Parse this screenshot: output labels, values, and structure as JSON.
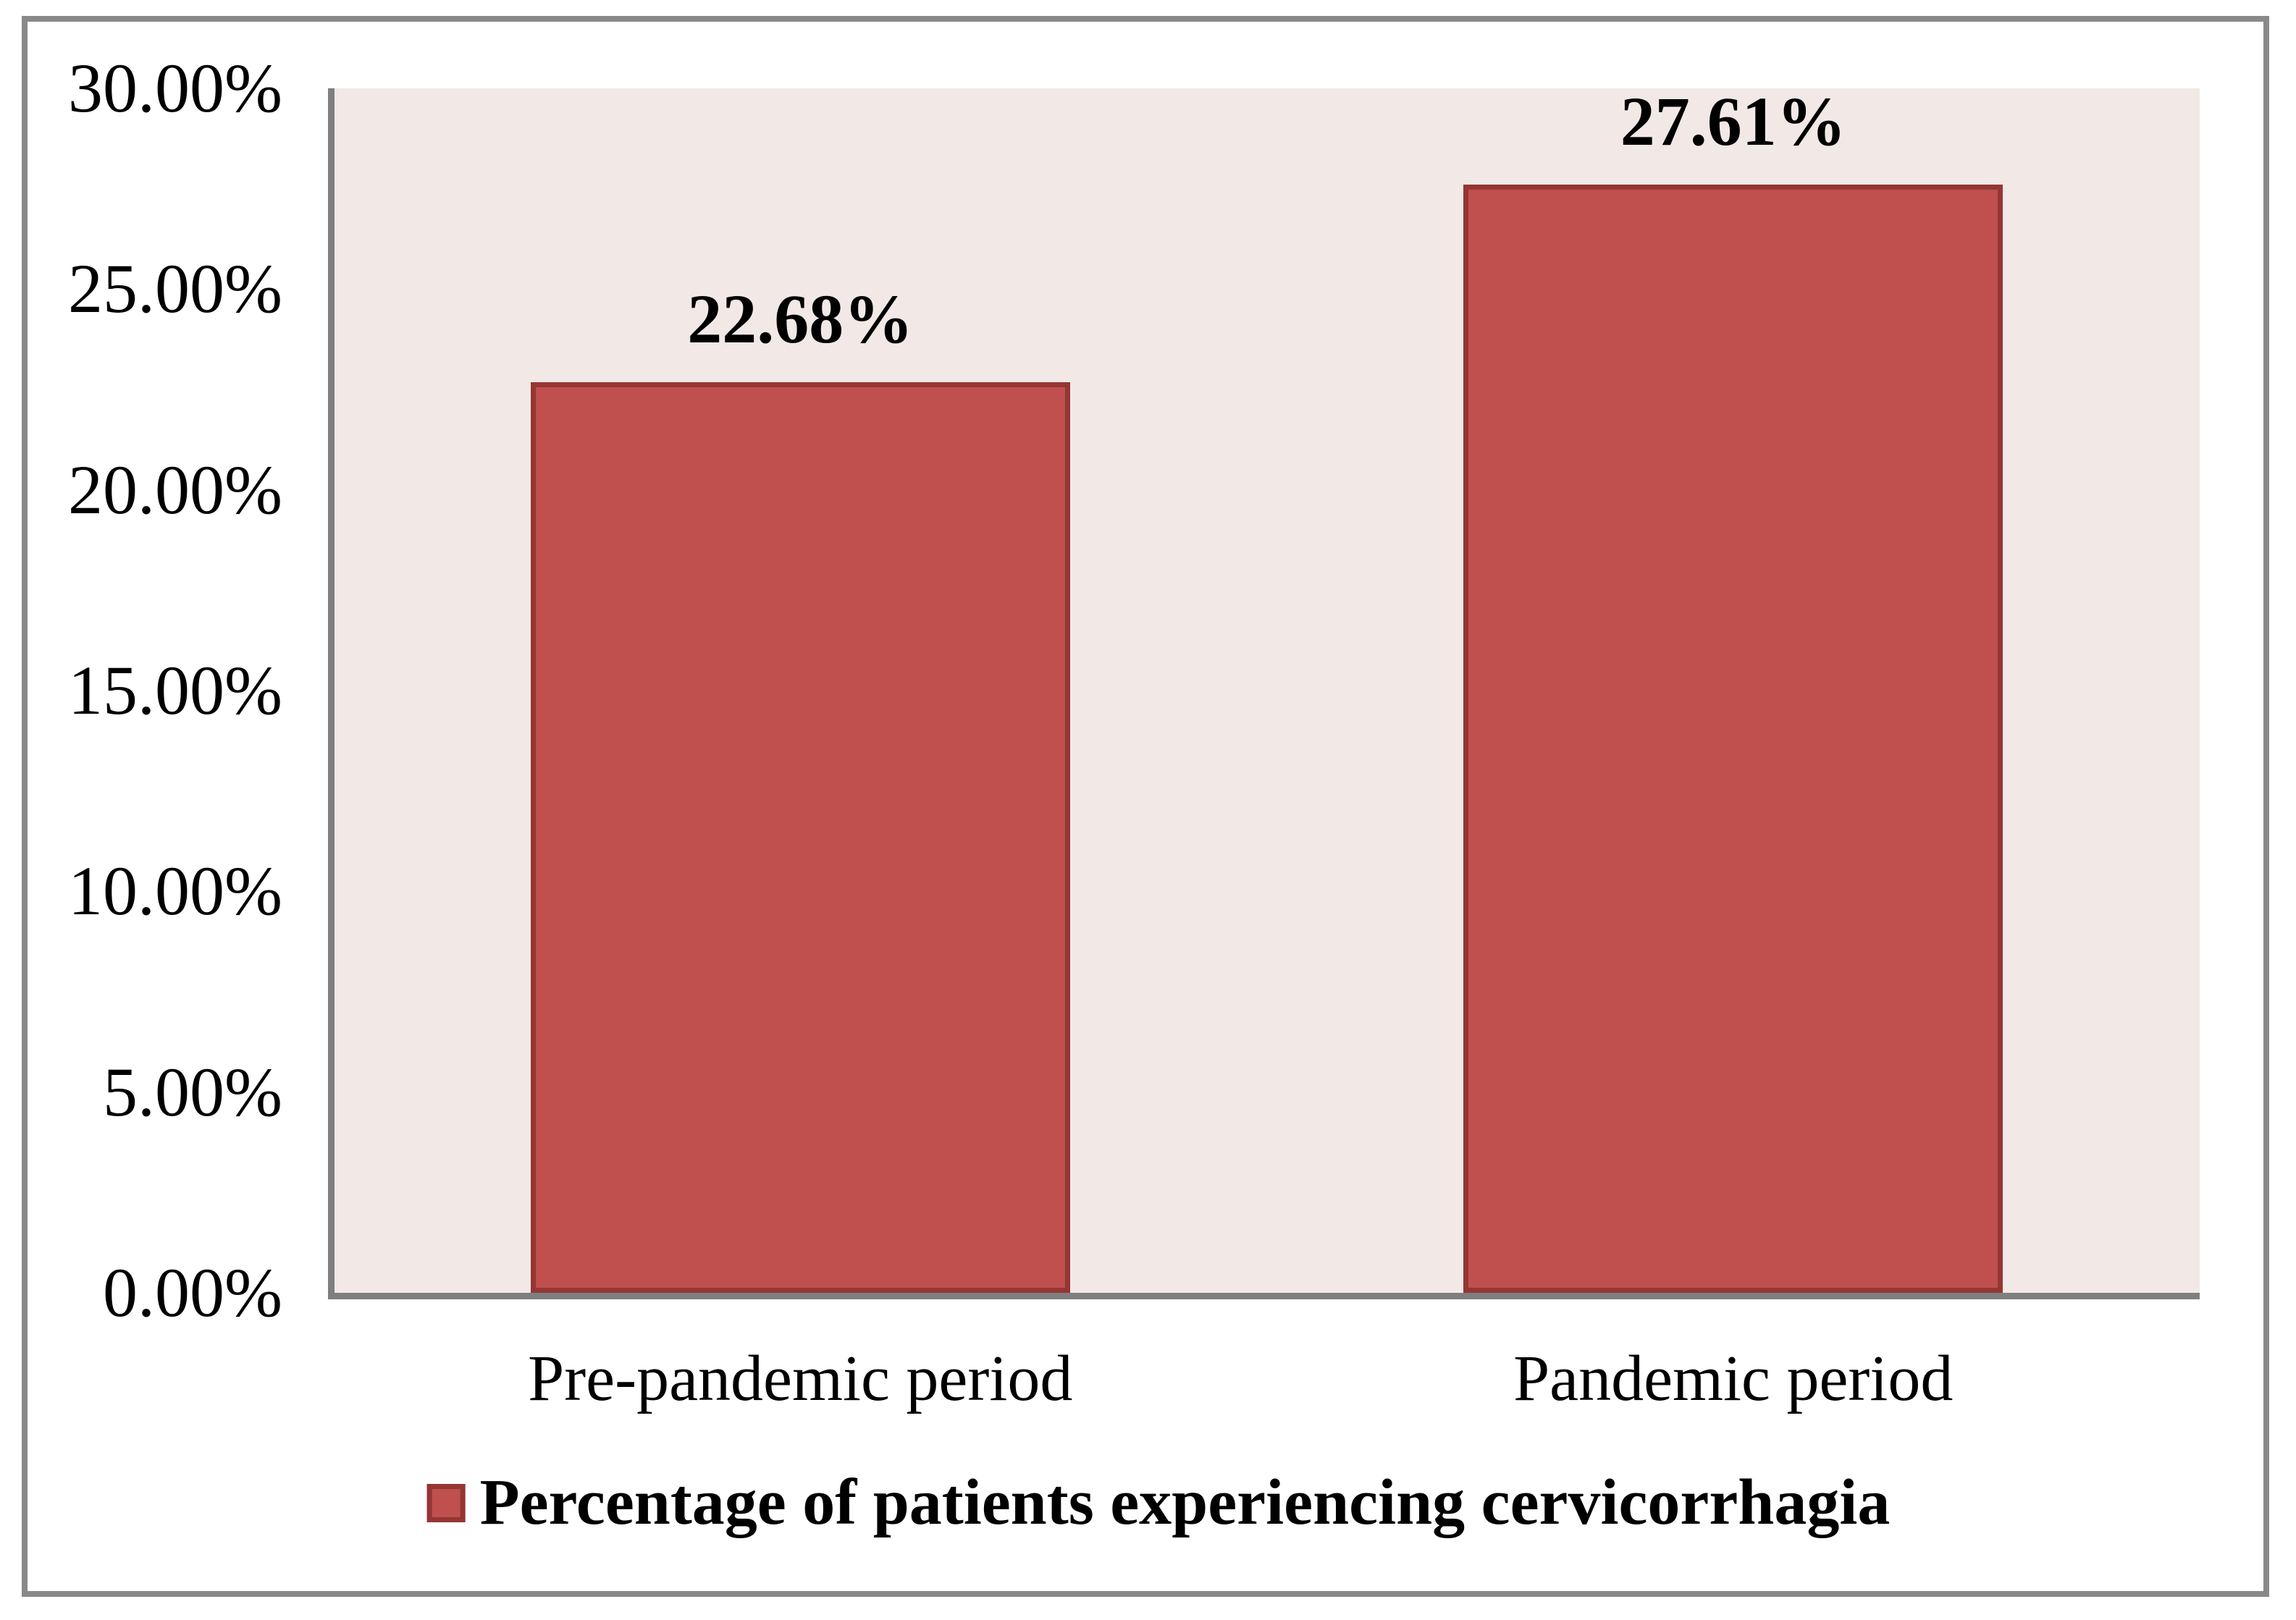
{
  "chart_data": {
    "type": "bar",
    "title": "",
    "categories": [
      "Pre-pandemic period",
      "Pandemic period"
    ],
    "values": [
      22.68,
      27.61
    ],
    "data_labels": [
      "22.68%",
      "27.61%"
    ],
    "series": [
      {
        "name": "Percentage of patients experiencing cervicorrhagia",
        "values": [
          22.68,
          27.61
        ]
      }
    ],
    "y_ticks": [
      {
        "value": 30,
        "label": "30.00%"
      },
      {
        "value": 25,
        "label": "25.00%"
      },
      {
        "value": 20,
        "label": "20.00%"
      },
      {
        "value": 15,
        "label": "15.00%"
      },
      {
        "value": 10,
        "label": "10.00%"
      },
      {
        "value": 5,
        "label": "5.00%"
      },
      {
        "value": 0,
        "label": "0.00%"
      }
    ],
    "ylim": [
      0,
      30
    ],
    "xlabel": "",
    "ylabel": "",
    "grid": false,
    "legend": {
      "position": "bottom",
      "label": "Percentage of patients experiencing cervicorrhagia"
    },
    "colors": {
      "bar_fill": "#C0504D",
      "bar_border": "#943634",
      "plot_background": "#F2E8E6",
      "axis_line": "#7F7F7F",
      "frame_border": "#898989",
      "text": "#000000"
    }
  }
}
